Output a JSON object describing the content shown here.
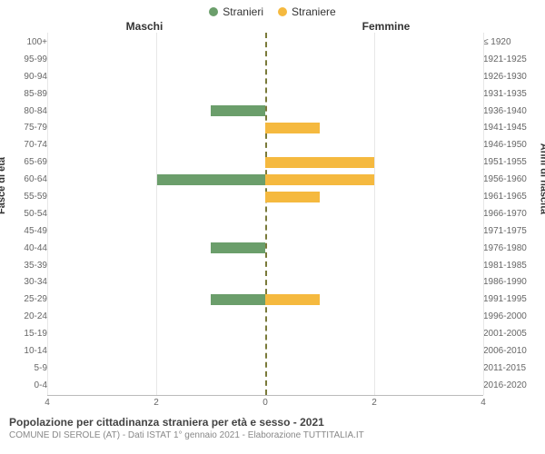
{
  "legend": {
    "male": {
      "label": "Stranieri",
      "color": "#6b9e6b"
    },
    "female": {
      "label": "Straniere",
      "color": "#f5b93f"
    }
  },
  "headers": {
    "left": "Maschi",
    "right": "Femmine"
  },
  "y_axis_left": {
    "title": "Fasce di età"
  },
  "y_axis_right": {
    "title": "Anni di nascita"
  },
  "x_axis": {
    "max": 4,
    "ticks": [
      4,
      2,
      0,
      2,
      4
    ]
  },
  "rows": [
    {
      "age": "100+",
      "birth": "≤ 1920",
      "m": 0,
      "f": 0
    },
    {
      "age": "95-99",
      "birth": "1921-1925",
      "m": 0,
      "f": 0
    },
    {
      "age": "90-94",
      "birth": "1926-1930",
      "m": 0,
      "f": 0
    },
    {
      "age": "85-89",
      "birth": "1931-1935",
      "m": 0,
      "f": 0
    },
    {
      "age": "80-84",
      "birth": "1936-1940",
      "m": 1,
      "f": 0
    },
    {
      "age": "75-79",
      "birth": "1941-1945",
      "m": 0,
      "f": 1
    },
    {
      "age": "70-74",
      "birth": "1946-1950",
      "m": 0,
      "f": 0
    },
    {
      "age": "65-69",
      "birth": "1951-1955",
      "m": 0,
      "f": 2
    },
    {
      "age": "60-64",
      "birth": "1956-1960",
      "m": 2,
      "f": 2
    },
    {
      "age": "55-59",
      "birth": "1961-1965",
      "m": 0,
      "f": 1
    },
    {
      "age": "50-54",
      "birth": "1966-1970",
      "m": 0,
      "f": 0
    },
    {
      "age": "45-49",
      "birth": "1971-1975",
      "m": 0,
      "f": 0
    },
    {
      "age": "40-44",
      "birth": "1976-1980",
      "m": 1,
      "f": 0
    },
    {
      "age": "35-39",
      "birth": "1981-1985",
      "m": 0,
      "f": 0
    },
    {
      "age": "30-34",
      "birth": "1986-1990",
      "m": 0,
      "f": 0
    },
    {
      "age": "25-29",
      "birth": "1991-1995",
      "m": 1,
      "f": 1
    },
    {
      "age": "20-24",
      "birth": "1996-2000",
      "m": 0,
      "f": 0
    },
    {
      "age": "15-19",
      "birth": "2001-2005",
      "m": 0,
      "f": 0
    },
    {
      "age": "10-14",
      "birth": "2006-2010",
      "m": 0,
      "f": 0
    },
    {
      "age": "5-9",
      "birth": "2011-2015",
      "m": 0,
      "f": 0
    },
    {
      "age": "0-4",
      "birth": "2016-2020",
      "m": 0,
      "f": 0
    }
  ],
  "colors": {
    "grid": "#e7e7e7",
    "center_dash": "#7a7a3a",
    "male_bar": "#6b9e6b",
    "female_bar": "#f5b93f",
    "background": "#ffffff"
  },
  "footer": {
    "title": "Popolazione per cittadinanza straniera per età e sesso - 2021",
    "subtitle": "COMUNE DI SEROLE (AT) - Dati ISTAT 1° gennaio 2021 - Elaborazione TUTTITALIA.IT"
  }
}
